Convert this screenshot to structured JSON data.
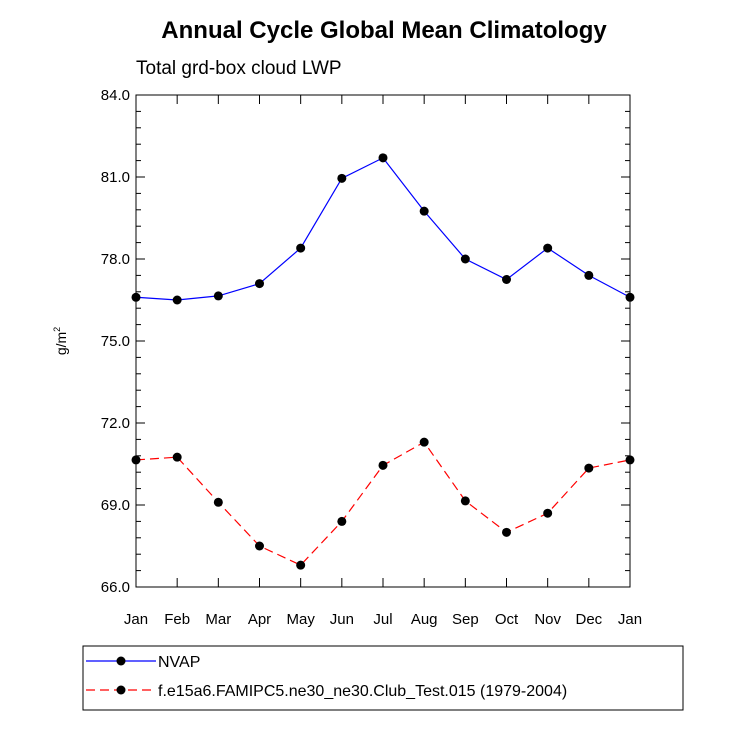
{
  "chart_data": {
    "type": "line",
    "title": "Annual Cycle Global Mean Climatology",
    "subtitle": "Total grd-box cloud LWP",
    "xlabel": "",
    "ylabel": "g/m",
    "ylabel_superscript": "2",
    "ylim": [
      66.0,
      84.0
    ],
    "yticks": [
      "66.0",
      "69.0",
      "72.0",
      "75.0",
      "78.0",
      "81.0",
      "84.0"
    ],
    "categories": [
      "Jan",
      "Feb",
      "Mar",
      "Apr",
      "May",
      "Jun",
      "Jul",
      "Aug",
      "Sep",
      "Oct",
      "Nov",
      "Dec",
      "Jan"
    ],
    "series": [
      {
        "name": "NVAP",
        "color": "#0000ff",
        "dash": "solid",
        "values": [
          76.6,
          76.5,
          76.65,
          77.1,
          78.4,
          80.95,
          81.7,
          79.75,
          78.0,
          77.25,
          78.4,
          77.4,
          76.6
        ]
      },
      {
        "name": "f.e15a6.FAMIPC5.ne30_ne30.Club_Test.015 (1979-2004)",
        "color": "#ff0000",
        "dash": "dashed",
        "values": [
          70.65,
          70.75,
          69.1,
          67.5,
          66.8,
          68.4,
          70.45,
          71.3,
          69.15,
          68.0,
          68.7,
          70.35,
          70.65
        ]
      }
    ]
  }
}
